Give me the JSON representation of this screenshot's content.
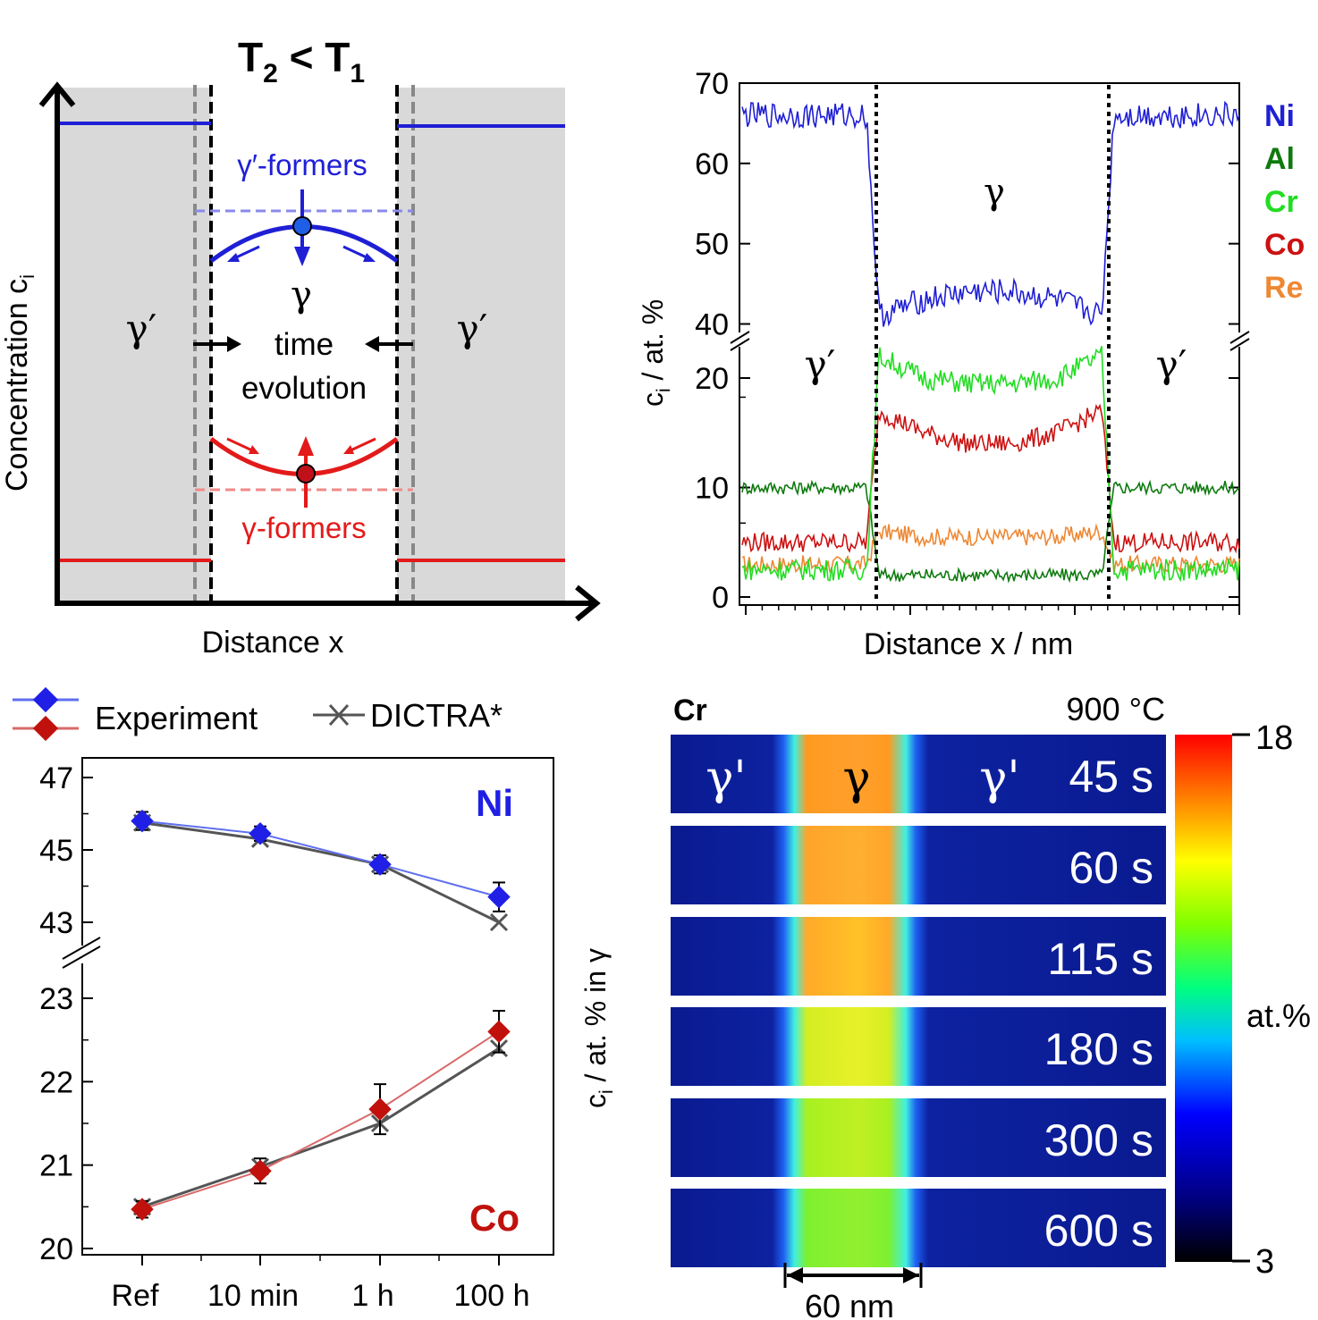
{
  "panel_a": {
    "title_T": "T",
    "title_sub2": "2",
    "title_lt": " < T",
    "title_sub1": "1",
    "ylabel": "Concentration c",
    "ylabel_sub": "i",
    "xlabel": "Distance x",
    "gamma_prime_formers": "γ′-formers",
    "gamma_formers": "γ-formers",
    "gamma": "γ",
    "gamma_prime": "γ′",
    "time": "time",
    "evolution": "evolution",
    "colors": {
      "blue": "#1f1fd6",
      "red": "#e31a1a",
      "gray": "#d9d9d9"
    }
  },
  "panel_c": {
    "ylabel": "c",
    "ylabel_sub": "i",
    "ylabel_rest": " / at. % in γ",
    "legend_experiment": "Experiment",
    "legend_dictra": "DICTRA*",
    "label_ni": "Ni",
    "label_co": "Co",
    "yticks_top": [
      "47",
      "45",
      "43"
    ],
    "yticks_bottom": [
      "23",
      "22",
      "21",
      "20"
    ],
    "xticks": [
      "Ref",
      "10 min",
      "1 h",
      "100 h"
    ]
  },
  "panel_d": {
    "element": "Cr",
    "temperature": "900 °C",
    "gamma_prime": "γ'",
    "gamma": "γ",
    "times": [
      "45 s",
      "60 s",
      "115 s",
      "180 s",
      "300 s",
      "600 s"
    ],
    "colorbar_max": "18",
    "colorbar_min": "3",
    "colorbar_unit": "at.%",
    "scale_bar": "60 nm"
  },
  "chart_data": [
    {
      "type": "line",
      "title": "",
      "xlabel": "Distance x / nm",
      "ylabel": "c_i / at. %",
      "ylim_upper": [
        38,
        70
      ],
      "ylim_lower": [
        0,
        24
      ],
      "yticks": [
        "70",
        "60",
        "50",
        "40",
        "20",
        "10",
        "0"
      ],
      "regions": [
        "γ′",
        "γ",
        "γ′"
      ],
      "series": [
        {
          "name": "Ni",
          "color": "#1f1fd6",
          "gamma_prime": 66,
          "gamma": [
            41,
            43,
            44,
            44,
            43,
            41
          ]
        },
        {
          "name": "Al",
          "color": "#0f7a0f",
          "gamma_prime": 10,
          "gamma": [
            2,
            2,
            2,
            2,
            2,
            2
          ]
        },
        {
          "name": "Cr",
          "color": "#22dd22",
          "gamma_prime": 2.5,
          "gamma": [
            22,
            20,
            19.5,
            19.5,
            20,
            22
          ]
        },
        {
          "name": "Co",
          "color": "#cc1111",
          "gamma_prime": 5,
          "gamma": [
            17,
            15,
            14,
            14,
            15,
            17
          ]
        },
        {
          "name": "Re",
          "color": "#ee8833",
          "gamma_prime": 3,
          "gamma": [
            6,
            5.5,
            5.5,
            5.5,
            5.5,
            6
          ]
        }
      ]
    },
    {
      "type": "line",
      "title": "",
      "xlabel": "",
      "ylabel": "c_i / at. % in γ",
      "categories": [
        "Ref",
        "10 min",
        "1 h",
        "100 h"
      ],
      "ylim_upper": [
        42.5,
        47.5
      ],
      "ylim_lower": [
        19.9,
        23.5
      ],
      "series": [
        {
          "name": "Ni Experiment",
          "values": [
            45.8,
            45.45,
            44.6,
            43.7
          ],
          "errors": [
            0.25,
            0.2,
            0.25,
            0.4
          ],
          "color": "#1f1fe6"
        },
        {
          "name": "Ni DICTRA*",
          "values": [
            45.75,
            45.3,
            44.6,
            43.0
          ],
          "color": "#555555"
        },
        {
          "name": "Co Experiment",
          "values": [
            20.47,
            20.93,
            21.67,
            22.6
          ],
          "errors": [
            0.1,
            0.15,
            0.3,
            0.25
          ],
          "color": "#c0110d"
        },
        {
          "name": "Co DICTRA*",
          "values": [
            20.5,
            20.98,
            21.5,
            22.4
          ],
          "color": "#555555"
        }
      ]
    }
  ]
}
